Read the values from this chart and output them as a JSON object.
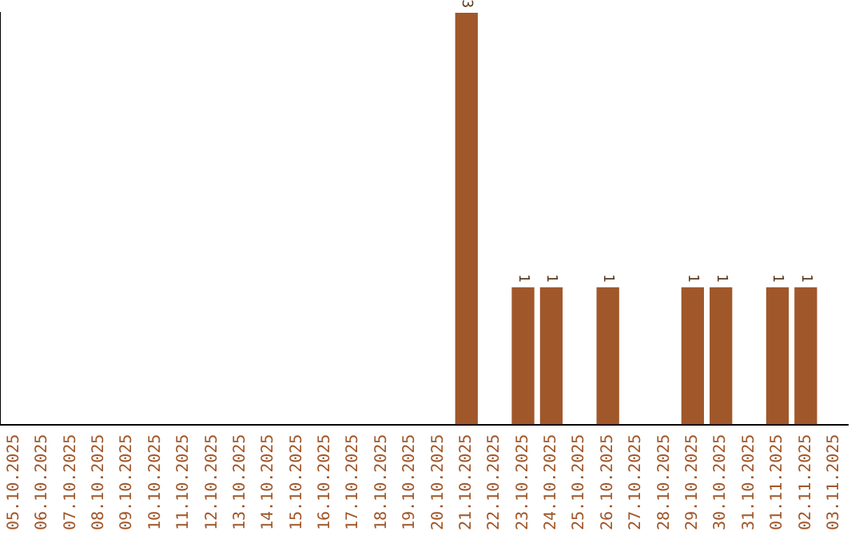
{
  "chart_data": {
    "type": "bar",
    "categories": [
      "05.10.2025",
      "06.10.2025",
      "07.10.2025",
      "08.10.2025",
      "09.10.2025",
      "10.10.2025",
      "11.10.2025",
      "12.10.2025",
      "13.10.2025",
      "14.10.2025",
      "15.10.2025",
      "16.10.2025",
      "17.10.2025",
      "18.10.2025",
      "19.10.2025",
      "20.10.2025",
      "21.10.2025",
      "22.10.2025",
      "23.10.2025",
      "24.10.2025",
      "25.10.2025",
      "26.10.2025",
      "27.10.2025",
      "28.10.2025",
      "29.10.2025",
      "30.10.2025",
      "31.10.2025",
      "01.11.2025",
      "02.11.2025",
      "03.11.2025"
    ],
    "values": [
      null,
      null,
      null,
      null,
      null,
      null,
      null,
      null,
      null,
      null,
      null,
      null,
      null,
      null,
      null,
      null,
      3,
      null,
      1,
      1,
      null,
      1,
      null,
      null,
      1,
      1,
      null,
      1,
      1,
      null
    ],
    "value_labels": [
      null,
      null,
      null,
      null,
      null,
      null,
      null,
      null,
      null,
      null,
      null,
      null,
      null,
      null,
      null,
      null,
      "3",
      null,
      "1",
      "1",
      null,
      "1",
      null,
      null,
      "1",
      "1",
      null,
      "1",
      "1",
      null
    ],
    "color": "#a0572a",
    "grid": false,
    "legend": false
  }
}
